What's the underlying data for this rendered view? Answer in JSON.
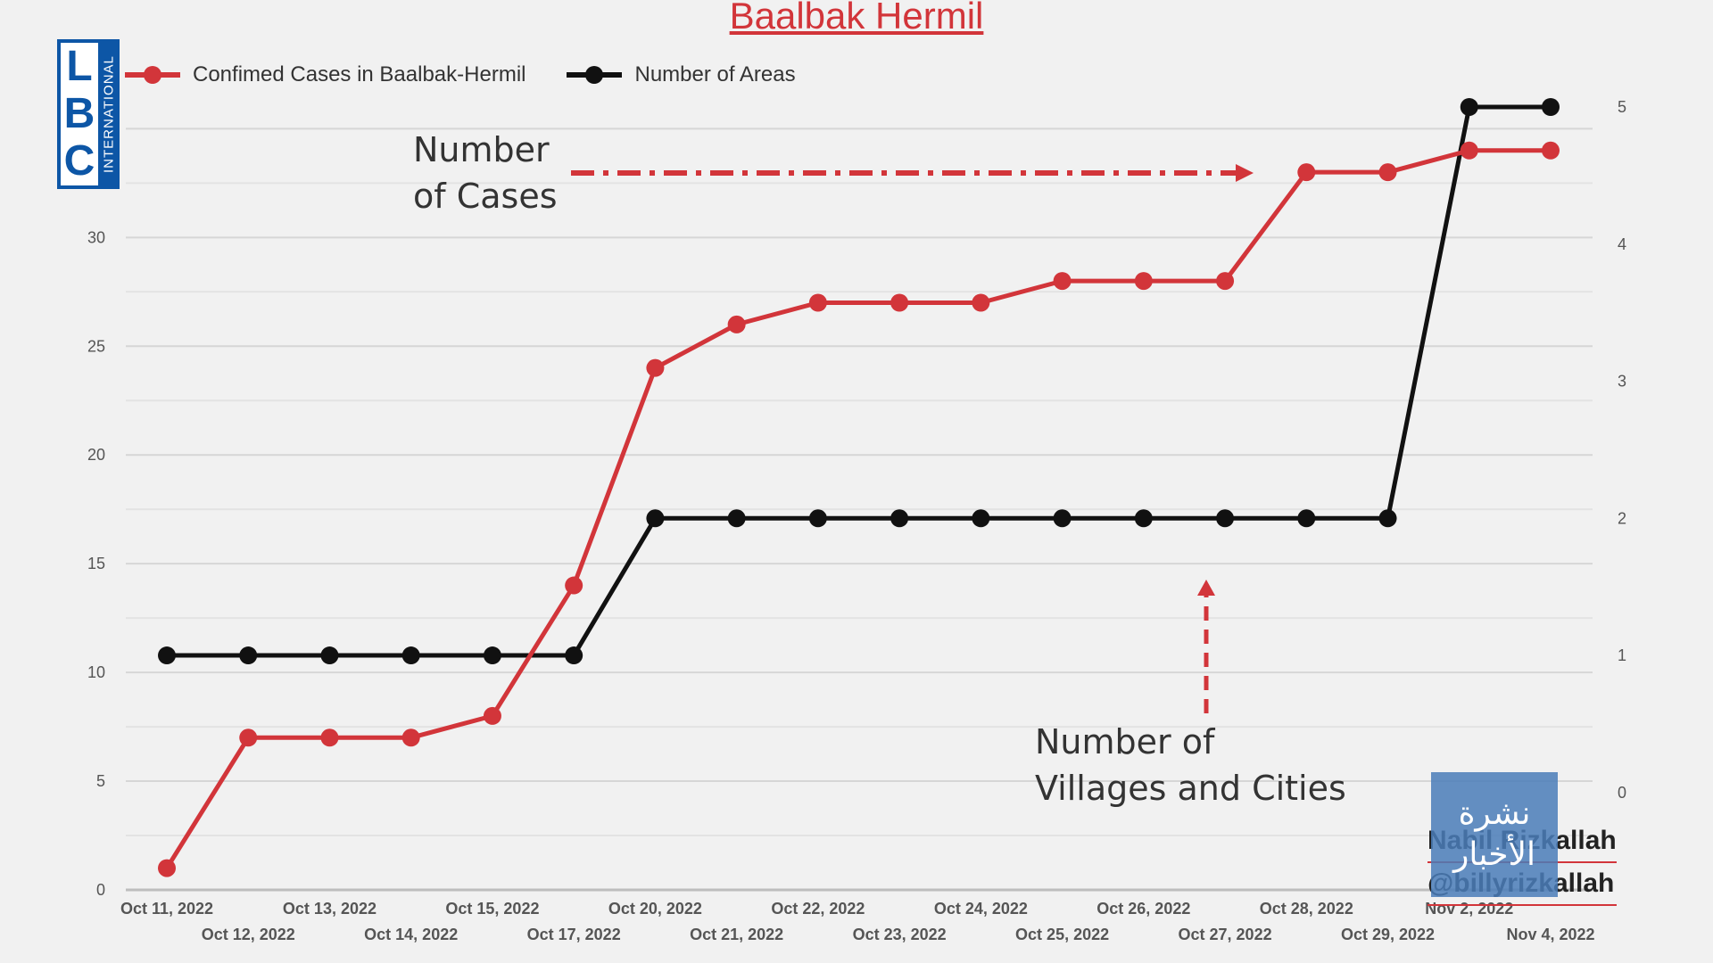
{
  "chart_data": {
    "type": "line",
    "title": "Baalbak Hermil",
    "categories": [
      "Oct 11, 2022",
      "Oct 12, 2022",
      "Oct 13, 2022",
      "Oct 14, 2022",
      "Oct 15, 2022",
      "Oct 17, 2022",
      "Oct 20, 2022",
      "Oct 21, 2022",
      "Oct 22, 2022",
      "Oct 23, 2022",
      "Oct 24, 2022",
      "Oct 25, 2022",
      "Oct 26, 2022",
      "Oct 27, 2022",
      "Oct 28, 2022",
      "Oct 29, 2022",
      "Nov 2, 2022",
      "Nov 4, 2022"
    ],
    "series": [
      {
        "name": "Confimed Cases in Baalbak-Hermil",
        "axis": "left",
        "color": "#d2353a",
        "values": [
          1,
          7,
          7,
          7,
          8,
          14,
          24,
          26,
          27,
          27,
          27,
          28,
          28,
          28,
          33,
          33,
          34,
          34
        ]
      },
      {
        "name": "Number of Areas",
        "axis": "right",
        "color": "#111111",
        "values": [
          1,
          1,
          1,
          1,
          1,
          1,
          2,
          2,
          2,
          2,
          2,
          2,
          2,
          2,
          2,
          2,
          5,
          5
        ]
      }
    ],
    "y_left": {
      "ticks": [
        0,
        5,
        10,
        15,
        20,
        25,
        30
      ],
      "ylim": [
        0,
        36
      ]
    },
    "y_right": {
      "ticks": [
        0,
        1,
        2,
        3,
        4,
        5
      ],
      "ylim": [
        -0.71,
        5.0
      ]
    },
    "grid": true,
    "legend_position": "top-left",
    "annotations": [
      {
        "text_lines": [
          "Number",
          "of Cases"
        ],
        "arrow": "dash-dot right",
        "color": "#d2353a"
      },
      {
        "text_lines": [
          "Number of",
          "Villages and Cities"
        ],
        "arrow": "dashed up",
        "color": "#d2353a"
      }
    ]
  },
  "branding": {
    "lbc_letters": [
      "L",
      "B",
      "C"
    ],
    "lbc_sub": "INTERNATIONAL",
    "nashra_lines": [
      "نشرة",
      "الأخبار"
    ],
    "credit_name": "Nabil Rizkallah",
    "credit_handle": "@billyrizkallah"
  },
  "colors": {
    "cases": "#d2353a",
    "areas": "#111111",
    "grid": "#dcdcdc"
  }
}
